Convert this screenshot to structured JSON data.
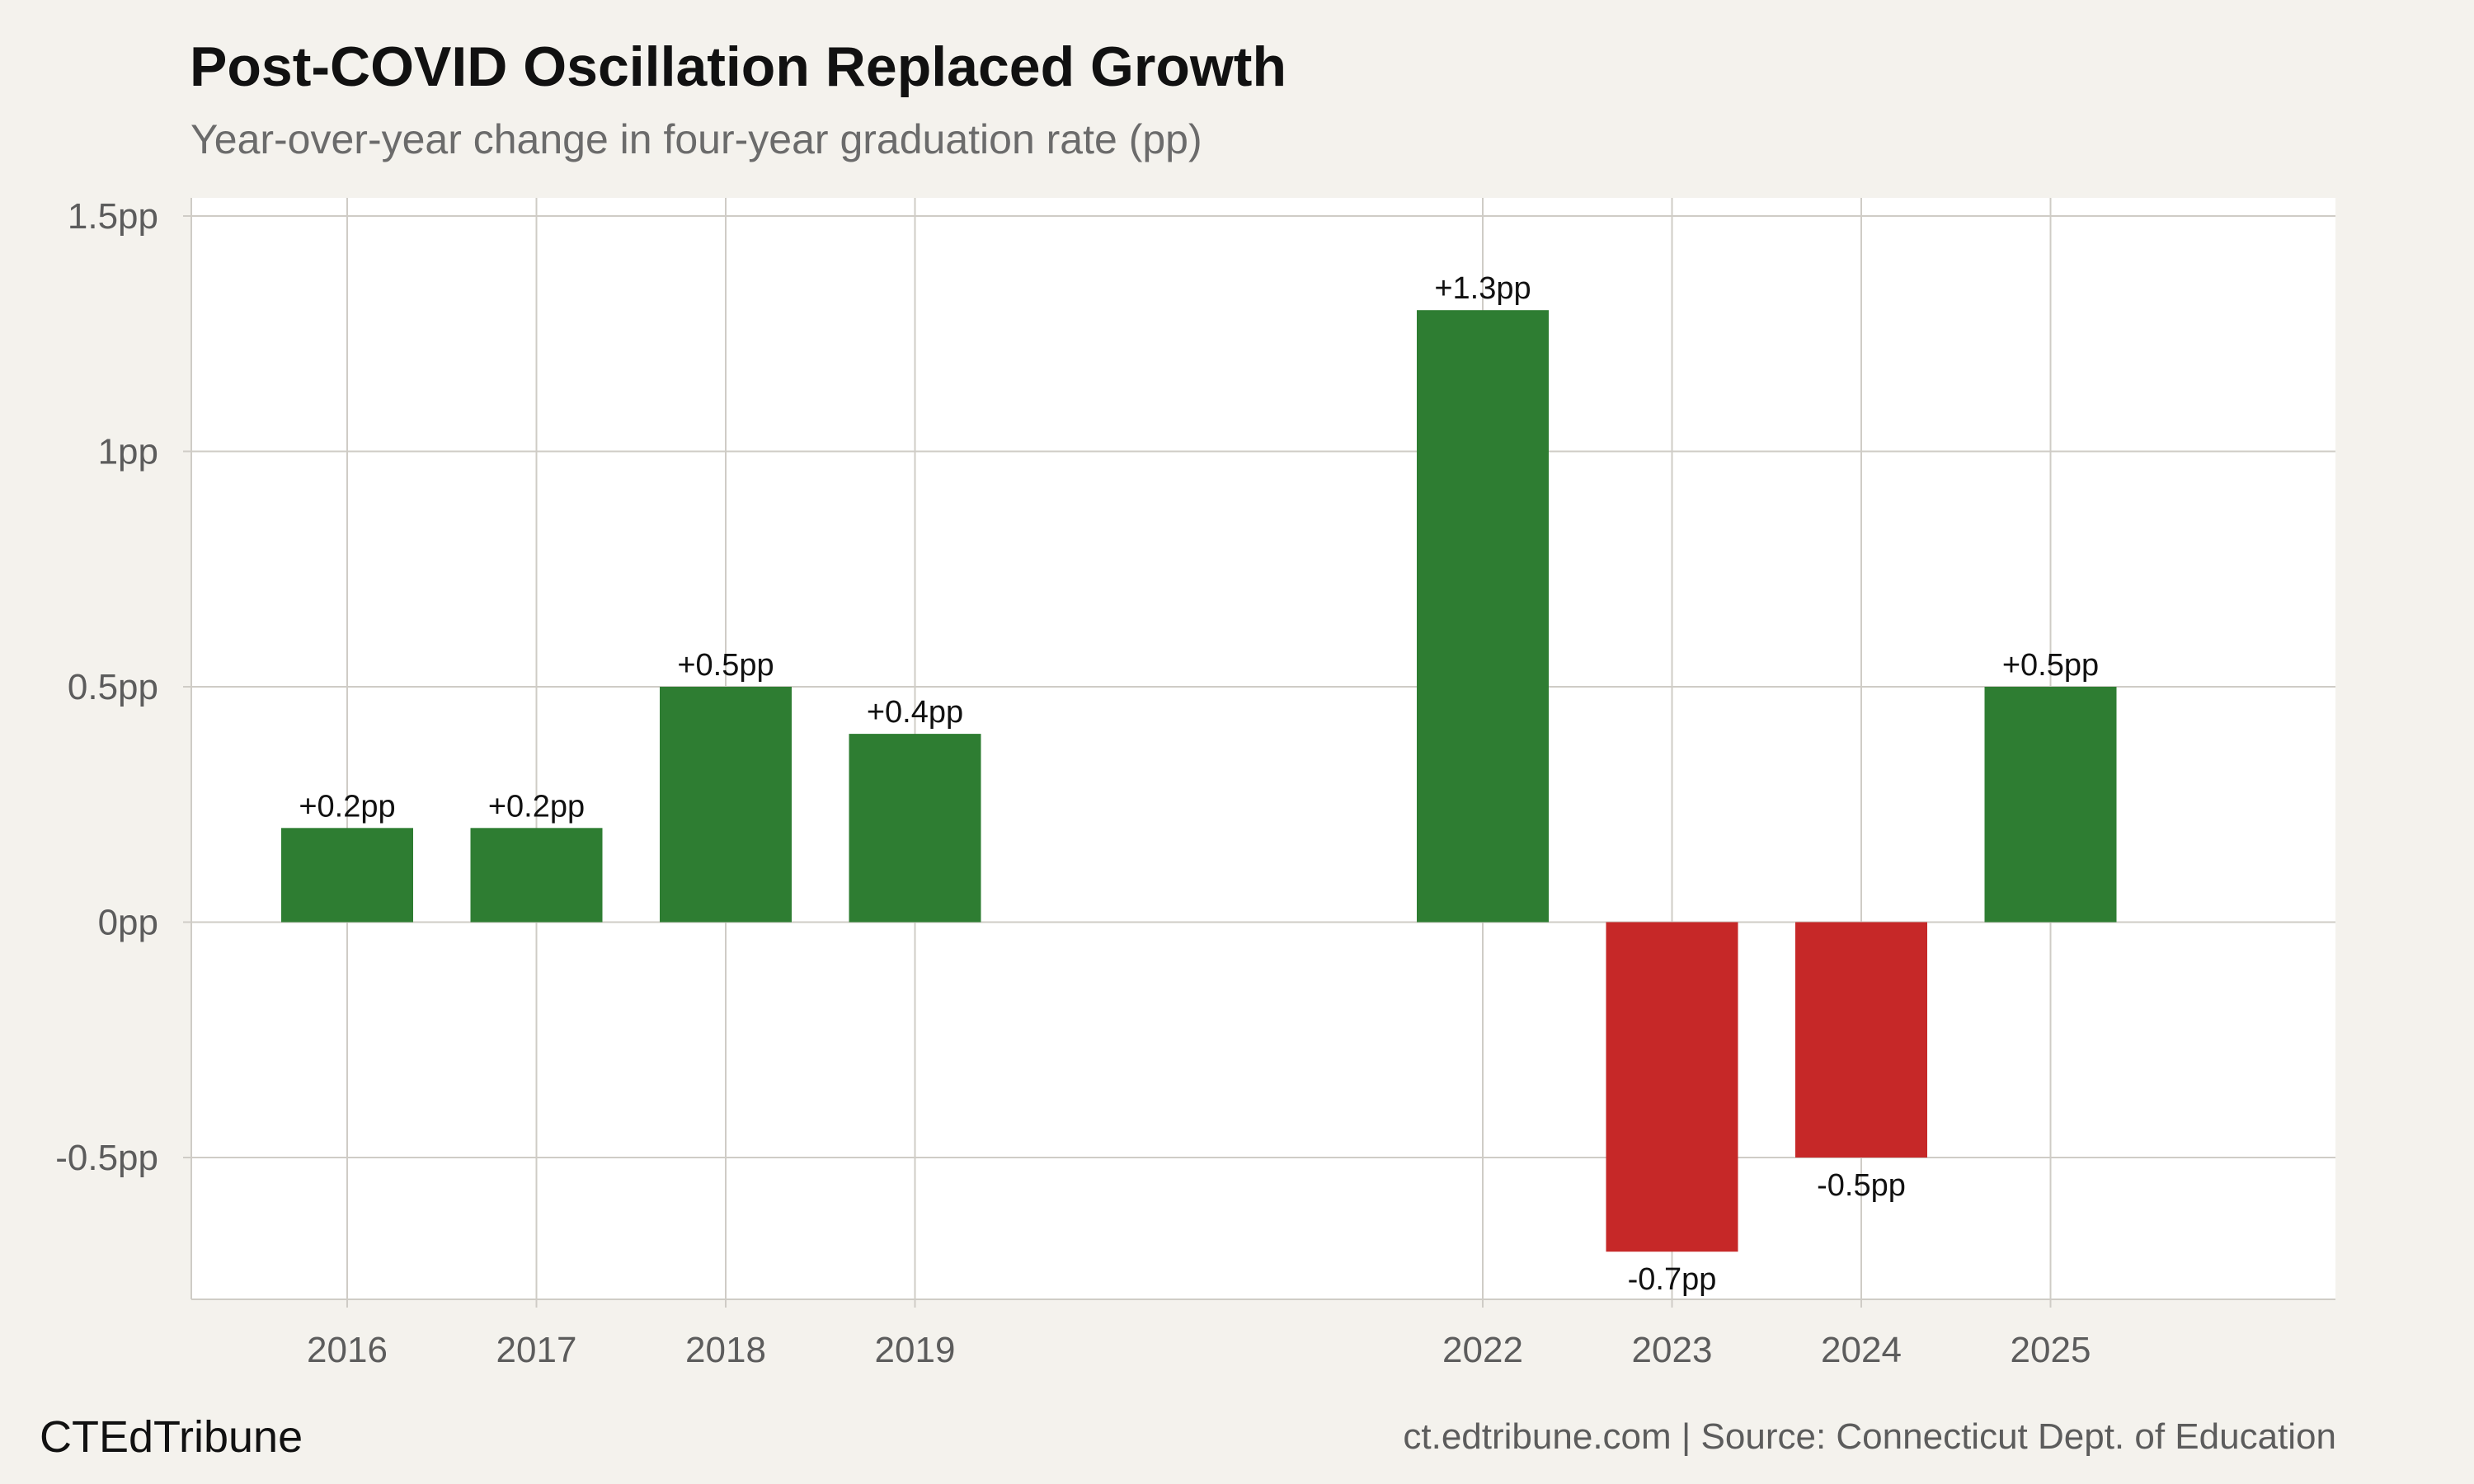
{
  "header": {
    "title": "Post-COVID Oscillation Replaced Growth",
    "subtitle": "Year-over-year change in four-year graduation rate (pp)"
  },
  "footer": {
    "brand": "CTEdTribune",
    "source": "ct.edtribune.com | Source: Connecticut Dept. of Education"
  },
  "colors": {
    "positive": "#2e7d32",
    "negative": "#c62828",
    "panel": "#ffffff",
    "background": "#f4f2ed",
    "grid": "#cfccc6"
  },
  "chart_data": {
    "type": "bar",
    "title": "Post-COVID Oscillation Replaced Growth",
    "subtitle": "Year-over-year change in four-year graduation rate (pp)",
    "xlabel": "",
    "ylabel": "",
    "categories": [
      "2016",
      "2017",
      "2018",
      "2019",
      "2022",
      "2023",
      "2024",
      "2025"
    ],
    "x": [
      2016,
      2017,
      2018,
      2019,
      2022,
      2023,
      2024,
      2025
    ],
    "values": [
      0.2,
      0.2,
      0.5,
      0.4,
      1.3,
      -0.7,
      -0.5,
      0.5
    ],
    "data_labels": [
      "+0.2pp",
      "+0.2pp",
      "+0.5pp",
      "+0.4pp",
      "+1.3pp",
      "-0.7pp",
      "-0.5pp",
      "+0.5pp"
    ],
    "xlim": [
      2015.17,
      2026.5
    ],
    "ylim": [
      -0.8,
      1.5
    ],
    "yticks": [
      -0.5,
      0,
      0.5,
      1,
      1.5
    ],
    "ytick_labels": [
      "-0.5pp",
      "0pp",
      "0.5pp",
      "1pp",
      "1.5pp"
    ],
    "grid": true,
    "legend": "none"
  }
}
